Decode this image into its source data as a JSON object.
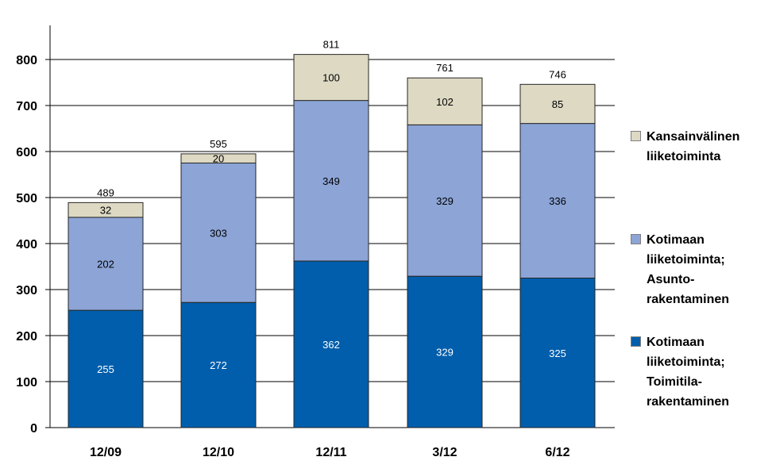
{
  "chart_data": {
    "type": "bar",
    "stacked": true,
    "categories": [
      "12/09",
      "12/10",
      "12/11",
      "3/12",
      "6/12"
    ],
    "ylim": [
      0,
      900
    ],
    "yticks": [
      0,
      100,
      200,
      300,
      400,
      500,
      600,
      700,
      800
    ],
    "grid": true,
    "legend_position": "right",
    "series": [
      {
        "name": "Kotimaan liiketoiminta; Toimitila-rakentaminen",
        "legend_label": "Kotimaan\nliiketoiminta;\nToimitila-\nrakentaminen",
        "color": "#005eac",
        "label_color": "#ffffff",
        "values": [
          255,
          272,
          362,
          329,
          325
        ]
      },
      {
        "name": "Kotimaan liiketoiminta; Asunto-rakentaminen",
        "legend_label": "Kotimaan\nliiketoiminta;\nAsunto-\nrakentaminen",
        "color": "#8ca4d6",
        "label_color": "#000000",
        "values": [
          202,
          303,
          349,
          329,
          336
        ]
      },
      {
        "name": "Kansainvälinen liiketoiminta",
        "legend_label": "Kansainvälinen\nliiketoiminta",
        "color": "#ddd9c3",
        "label_color": "#000000",
        "values": [
          32,
          20,
          100,
          102,
          85
        ]
      }
    ],
    "totals": [
      489,
      595,
      811,
      761,
      746
    ]
  }
}
